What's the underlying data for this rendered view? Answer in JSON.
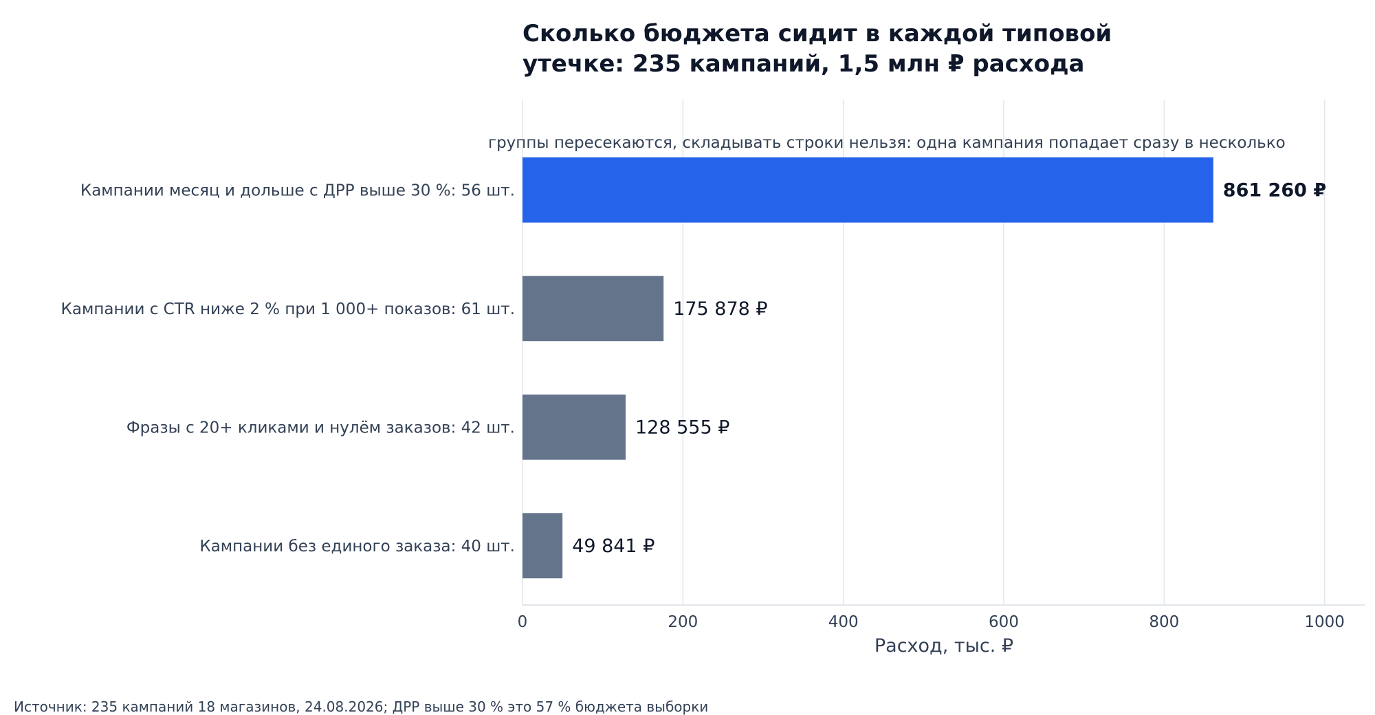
{
  "chart_data": {
    "type": "bar",
    "orientation": "horizontal",
    "title_lines": [
      "Сколько бюджета сидит в каждой типовой",
      "утечке: 235 кампаний, 1,5 млн ₽ расхода"
    ],
    "note": "группы пересекаются, складывать строки нельзя: одна кампания попадает сразу в несколько",
    "categories": [
      "Кампании месяц и дольше с ДРР выше 30 %: 56 шт.",
      "Кампании с CTR ниже 2 % при 1 000+ показов: 61 шт.",
      "Фразы с 20+ кликами и нулём заказов: 42 шт.",
      "Кампании без единого заказа: 40 шт."
    ],
    "values": [
      861.26,
      175.878,
      128.555,
      49.841
    ],
    "value_labels": [
      "861 260 ₽",
      "175 878 ₽",
      "128 555 ₽",
      "49 841 ₽"
    ],
    "highlight_index": 0,
    "colors": {
      "highlight": "#2563eb",
      "default": "#64748b"
    },
    "xlabel": "Расход, тыс. ₽",
    "xlim": [
      0,
      1050
    ],
    "xticks": [
      0,
      200,
      400,
      600,
      800,
      1000
    ],
    "xtick_labels": [
      "0",
      "200",
      "400",
      "600",
      "800",
      "1000"
    ],
    "grid": true,
    "source": "Источник: 235 кампаний 18 магазинов, 24.08.2026; ДРР выше 30 % это 57 % бюджета выборки"
  }
}
